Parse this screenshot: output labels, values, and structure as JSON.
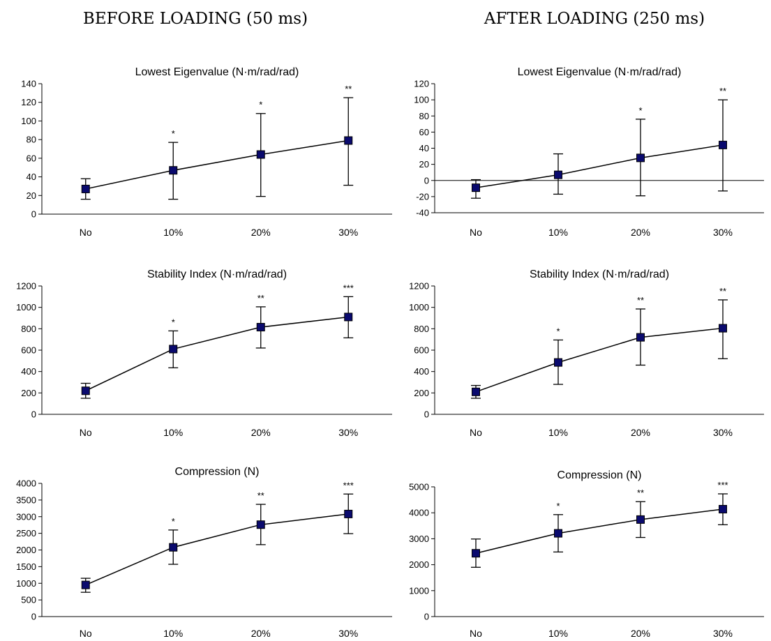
{
  "headers": {
    "left": "BEFORE LOADING (50 ms)",
    "right": "AFTER LOADING (250 ms)"
  },
  "colors": {
    "marker": "#0a0a6e",
    "line": "#000000"
  },
  "chart_data": [
    {
      "type": "line",
      "title": "Lowest Eigenvalue (N·m/rad/rad)",
      "categories": [
        "No",
        "10%",
        "20%",
        "30%"
      ],
      "values": [
        27,
        47,
        64,
        79
      ],
      "err_low": [
        16,
        16,
        19,
        31
      ],
      "err_high": [
        38,
        77,
        108,
        125
      ],
      "significance": [
        "",
        "*",
        "*",
        "**"
      ],
      "ylim": [
        0,
        140
      ],
      "yticks": [
        0,
        20,
        40,
        60,
        80,
        100,
        120,
        140
      ]
    },
    {
      "type": "line",
      "title": "Lowest Eigenvalue (N·m/rad/rad)",
      "categories": [
        "No",
        "10%",
        "20%",
        "30%"
      ],
      "values": [
        -9,
        7,
        28,
        44
      ],
      "err_low": [
        -22,
        -17,
        -19,
        -13
      ],
      "err_high": [
        1,
        33,
        76,
        100
      ],
      "significance": [
        "",
        "",
        "*",
        "**"
      ],
      "ylim": [
        -40,
        120
      ],
      "yticks": [
        -40,
        -20,
        0,
        20,
        40,
        60,
        80,
        100,
        120
      ],
      "zero_line": true
    },
    {
      "type": "line",
      "title": "Stability Index (N·m/rad/rad)",
      "categories": [
        "No",
        "10%",
        "20%",
        "30%"
      ],
      "values": [
        220,
        610,
        815,
        910
      ],
      "err_low": [
        150,
        435,
        620,
        715
      ],
      "err_high": [
        290,
        780,
        1005,
        1100
      ],
      "significance": [
        "",
        "*",
        "**",
        "***"
      ],
      "ylim": [
        0,
        1200
      ],
      "yticks": [
        0,
        200,
        400,
        600,
        800,
        1000,
        1200
      ]
    },
    {
      "type": "line",
      "title": "Stability Index (N·m/rad/rad)",
      "categories": [
        "No",
        "10%",
        "20%",
        "30%"
      ],
      "values": [
        210,
        485,
        720,
        805
      ],
      "err_low": [
        150,
        280,
        460,
        520
      ],
      "err_high": [
        270,
        695,
        985,
        1070
      ],
      "significance": [
        "",
        "*",
        "**",
        "**"
      ],
      "ylim": [
        0,
        1200
      ],
      "yticks": [
        0,
        200,
        400,
        600,
        800,
        1000,
        1200
      ]
    },
    {
      "type": "line",
      "title": "Compression (N)",
      "categories": [
        "No",
        "10%",
        "20%",
        "30%"
      ],
      "values": [
        950,
        2080,
        2760,
        3080
      ],
      "err_low": [
        730,
        1570,
        2160,
        2490
      ],
      "err_high": [
        1150,
        2600,
        3370,
        3680
      ],
      "significance": [
        "",
        "*",
        "**",
        "***"
      ],
      "ylim": [
        0,
        4000
      ],
      "yticks": [
        0,
        500,
        1000,
        1500,
        2000,
        2500,
        3000,
        3500,
        4000
      ]
    },
    {
      "type": "line",
      "title": "Compression (N)",
      "categories": [
        "No",
        "10%",
        "20%",
        "30%"
      ],
      "values": [
        2440,
        3210,
        3740,
        4140
      ],
      "err_low": [
        1900,
        2490,
        3050,
        3540
      ],
      "err_high": [
        2990,
        3930,
        4430,
        4730
      ],
      "significance": [
        "",
        "*",
        "**",
        "***"
      ],
      "ylim": [
        0,
        5000
      ],
      "yticks": [
        0,
        1000,
        2000,
        3000,
        4000,
        5000
      ]
    }
  ]
}
